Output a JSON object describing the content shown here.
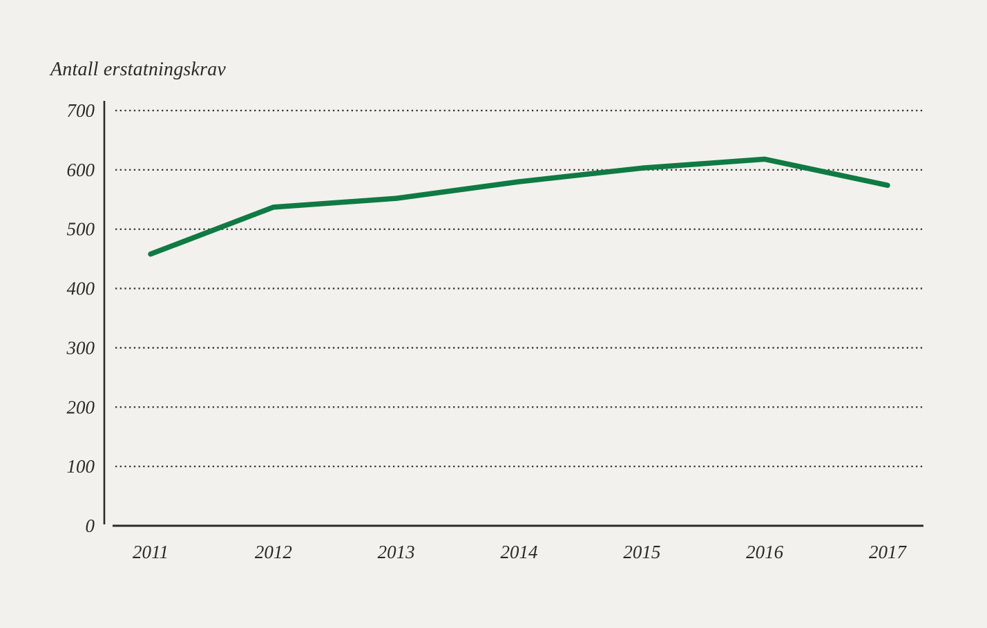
{
  "page": {
    "background_color": "#f2f1ee"
  },
  "chart_data": {
    "type": "line",
    "title": "Antall erstatningskrav",
    "categories": [
      "2011",
      "2012",
      "2013",
      "2014",
      "2015",
      "2016",
      "2017"
    ],
    "values": [
      458,
      537,
      552,
      580,
      603,
      618,
      574
    ],
    "series_name": "Antall erstatningskrav",
    "xlabel": "",
    "ylabel": "Antall erstatningskrav",
    "ylim": [
      0,
      700
    ],
    "yticks": [
      0,
      100,
      200,
      300,
      400,
      500,
      600,
      700
    ],
    "grid": "horizontal-dotted",
    "legend_position": "none",
    "line_color": "#0f7a43",
    "axis_color": "#2b2a25",
    "grid_color": "#35332e",
    "text_color": "#2c2a24"
  }
}
